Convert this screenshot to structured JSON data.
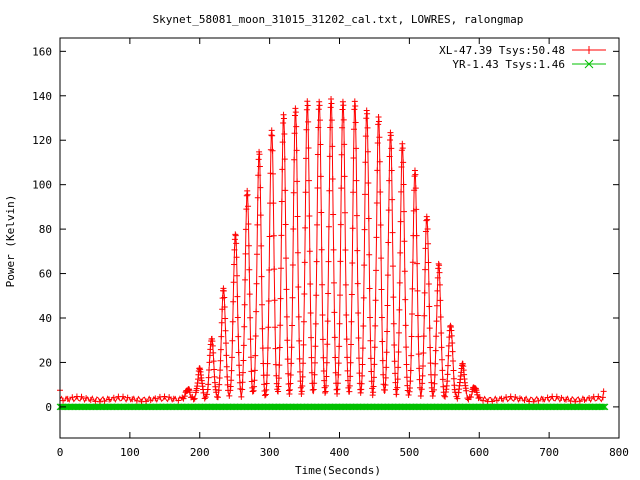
{
  "chart_data": {
    "type": "line",
    "title": "Skynet_58081_moon_31015_31202_cal.txt, LOWRES, ralongmap",
    "xlabel": "Time(Seconds)",
    "ylabel": "Power (Kelvin)",
    "xlim": [
      0,
      800
    ],
    "ylim": [
      -14,
      166
    ],
    "xticks": [
      0,
      100,
      200,
      300,
      400,
      500,
      600,
      700,
      800
    ],
    "yticks": [
      0,
      20,
      40,
      60,
      80,
      100,
      120,
      140,
      160
    ],
    "grid": false,
    "legend_position": "top-right",
    "series": [
      {
        "name": "XL-47.39 Tsys:50.48",
        "color": "#ff0000",
        "marker": "plus",
        "peaks": [
          {
            "x": 183,
            "y": 8
          },
          {
            "x": 200,
            "y": 17
          },
          {
            "x": 217,
            "y": 31
          },
          {
            "x": 234,
            "y": 53
          },
          {
            "x": 251,
            "y": 78
          },
          {
            "x": 268,
            "y": 97
          },
          {
            "x": 285,
            "y": 115
          },
          {
            "x": 303,
            "y": 125
          },
          {
            "x": 320,
            "y": 131
          },
          {
            "x": 337,
            "y": 135
          },
          {
            "x": 354,
            "y": 137
          },
          {
            "x": 371,
            "y": 138
          },
          {
            "x": 388,
            "y": 138
          },
          {
            "x": 405,
            "y": 138
          },
          {
            "x": 422,
            "y": 137
          },
          {
            "x": 439,
            "y": 134
          },
          {
            "x": 456,
            "y": 130
          },
          {
            "x": 473,
            "y": 124
          },
          {
            "x": 490,
            "y": 118
          },
          {
            "x": 508,
            "y": 106
          },
          {
            "x": 525,
            "y": 86
          },
          {
            "x": 542,
            "y": 64
          },
          {
            "x": 559,
            "y": 37
          },
          {
            "x": 576,
            "y": 19
          },
          {
            "x": 593,
            "y": 9
          }
        ],
        "baseline_y": 3.5,
        "end_x": 778
      },
      {
        "name": "YR-1.43 Tsys:1.46",
        "color": "#00c000",
        "marker": "cross",
        "constant_y": 0,
        "x_range": [
          0,
          780
        ]
      }
    ]
  }
}
